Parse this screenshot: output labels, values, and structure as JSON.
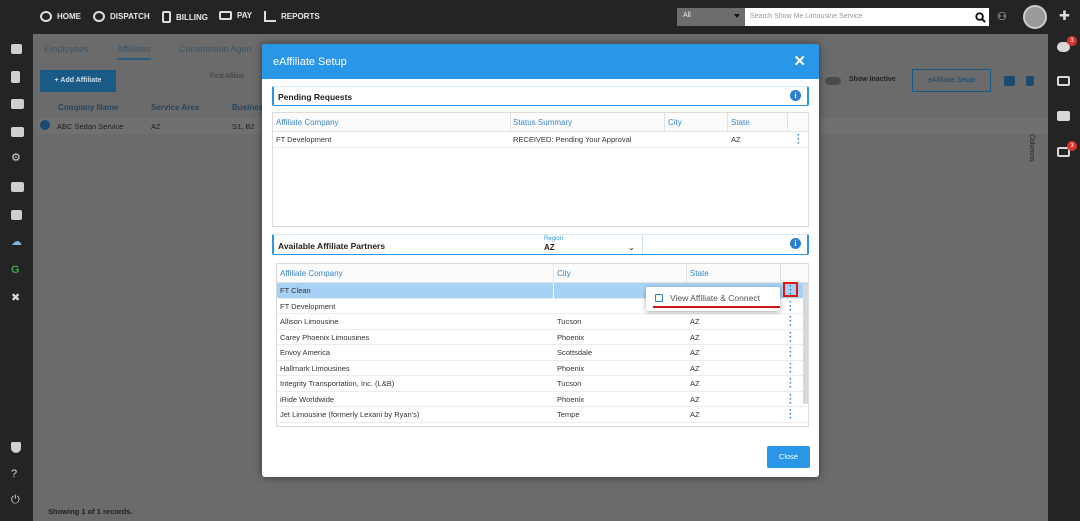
{
  "topnav": {
    "items": [
      {
        "label": "HOME",
        "icon": "speedometer-icon"
      },
      {
        "label": "DISPATCH",
        "icon": "headset-icon"
      },
      {
        "label": "BILLING",
        "icon": "receipt-icon"
      },
      {
        "label": "PAY",
        "icon": "money-icon"
      },
      {
        "label": "REPORTS",
        "icon": "chart-icon"
      }
    ],
    "search_scope": "All",
    "search_placeholder": "Search Show Me Limousine Service"
  },
  "background": {
    "tabs": [
      "Employees",
      "Affiliates",
      "Commission Agen"
    ],
    "add_affiliate_label": "+ Add Affiliate",
    "find_label": "Find Affiliat",
    "show_inactive_label": "Show Inactive",
    "esetup_label": "eAffiliate Setup",
    "columns": [
      "Company Name",
      "Service Area",
      "Busines"
    ],
    "row": {
      "company": "ABC Sedan Service",
      "area": "AZ",
      "business": "S1, B2"
    },
    "columns_label": "Columns",
    "footer": "Showing 1 of 1 records."
  },
  "badges": {
    "cloud": "3",
    "inbox": "3"
  },
  "modal": {
    "title": "eAffiliate Setup",
    "close_symbol": "✕",
    "pending": {
      "title": "Pending Requests",
      "headers": [
        "Affiliate Company",
        "Status Summary",
        "City",
        "State"
      ],
      "rows": [
        {
          "company": "FT Development",
          "status": "RECEIVED: Pending Your Approval",
          "city": "",
          "state": "AZ"
        }
      ]
    },
    "available": {
      "title": "Available Affiliate Partners",
      "region_label": "Region",
      "region_value": "AZ",
      "headers": [
        "Affiliate Company",
        "City",
        "State"
      ],
      "rows": [
        {
          "company": "FT Clean",
          "city": "",
          "state": ""
        },
        {
          "company": "FT Development",
          "city": "",
          "state": ""
        },
        {
          "company": "Allison Limousine",
          "city": "Tucson",
          "state": "AZ"
        },
        {
          "company": "Carey Phoenix Limousines",
          "city": "Phoenix",
          "state": "AZ"
        },
        {
          "company": "Envoy America",
          "city": "Scottsdale",
          "state": "AZ"
        },
        {
          "company": "Hallmark Limousines",
          "city": "Phoenix",
          "state": "AZ"
        },
        {
          "company": "Integrity Transportation, Inc. (L&B)",
          "city": "Tucson",
          "state": "AZ"
        },
        {
          "company": "iRide Worldwide",
          "city": "Phoenix",
          "state": "AZ"
        },
        {
          "company": "Jet Limousine (formerly Lexani by Ryan's)",
          "city": "Tempe",
          "state": "AZ"
        }
      ]
    },
    "context_menu": {
      "item": "View Affiliate & Connect"
    },
    "close_label": "Close"
  },
  "colors": {
    "accent": "#2a96e8",
    "highlight_row": "#a8d2f5",
    "annotation": "#e01818"
  }
}
